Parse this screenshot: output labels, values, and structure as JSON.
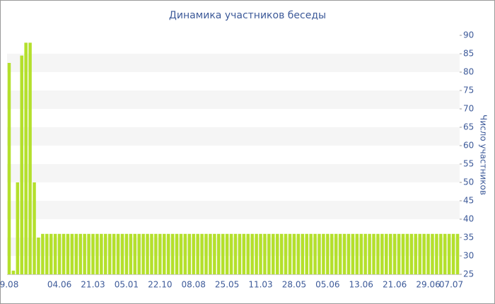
{
  "chart_data": {
    "type": "bar",
    "title": "Динамика участников беседы",
    "y_axis_label": "Число участников",
    "categories": [
      "9.08",
      null,
      null,
      null,
      null,
      null,
      null,
      null,
      null,
      null,
      null,
      null,
      "04.06",
      null,
      null,
      null,
      null,
      null,
      null,
      null,
      "21.03",
      null,
      null,
      null,
      null,
      null,
      null,
      null,
      "05.01",
      null,
      null,
      null,
      null,
      null,
      null,
      null,
      "22.10",
      null,
      null,
      null,
      null,
      null,
      null,
      null,
      "08.08",
      null,
      null,
      null,
      null,
      null,
      null,
      null,
      "25.05",
      null,
      null,
      null,
      null,
      null,
      null,
      null,
      "11.03",
      null,
      null,
      null,
      null,
      null,
      null,
      null,
      "28.05",
      null,
      null,
      null,
      null,
      null,
      null,
      null,
      "05.06",
      null,
      null,
      null,
      null,
      null,
      null,
      null,
      "13.06",
      null,
      null,
      null,
      null,
      null,
      null,
      null,
      "21.06",
      null,
      null,
      null,
      null,
      null,
      null,
      null,
      "29.06",
      null,
      null,
      null,
      null,
      null,
      null,
      "07.07"
    ],
    "values": [
      82.5,
      26,
      50,
      84.5,
      88,
      88,
      50,
      35,
      36,
      36,
      36,
      36,
      36,
      36,
      36,
      36,
      36,
      36,
      36,
      36,
      36,
      36,
      36,
      36,
      36,
      36,
      36,
      36,
      36,
      36,
      36,
      36,
      36,
      36,
      36,
      36,
      36,
      36,
      36,
      36,
      36,
      36,
      36,
      36,
      36,
      36,
      36,
      36,
      36,
      36,
      36,
      36,
      36,
      36,
      36,
      36,
      36,
      36,
      36,
      36,
      36,
      36,
      36,
      36,
      36,
      36,
      36,
      36,
      36,
      36,
      36,
      36,
      36,
      36,
      36,
      36,
      36,
      36,
      36,
      36,
      36,
      36,
      36,
      36,
      36,
      36,
      36,
      36,
      36,
      36,
      36,
      36,
      36,
      36,
      36,
      36,
      36,
      36,
      36,
      36,
      36,
      36,
      36,
      36,
      36,
      36,
      36,
      36
    ],
    "color": "#b4e02c",
    "ylim": [
      25,
      90
    ],
    "yticks": [
      25,
      30,
      35,
      40,
      45,
      50,
      55,
      60,
      65,
      70,
      75,
      80,
      85,
      90
    ],
    "y_axis_side": "right",
    "grid": "alternating-bands"
  }
}
